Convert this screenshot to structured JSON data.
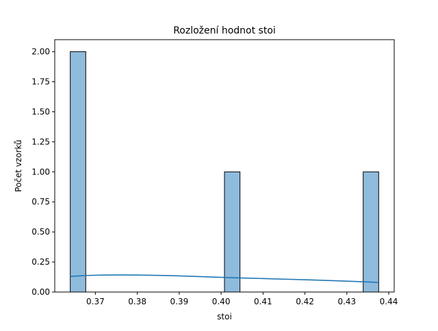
{
  "chart_data": {
    "type": "bar",
    "title": "Rozložení hodnot stoi",
    "xlabel": "stoi",
    "ylabel": "Počet vzorků",
    "xlim": [
      0.3603,
      0.4413
    ],
    "ylim": [
      0,
      2.1
    ],
    "grid": false,
    "legend": "none",
    "x_ticks": [
      0.37,
      0.38,
      0.39,
      0.4,
      0.41,
      0.42,
      0.43,
      0.44
    ],
    "x_tick_labels": [
      "0.37",
      "0.38",
      "0.39",
      "0.40",
      "0.41",
      "0.42",
      "0.43",
      "0.44"
    ],
    "y_ticks": [
      0,
      0.25,
      0.5,
      0.75,
      1.0,
      1.25,
      1.5,
      1.75,
      2.0
    ],
    "y_tick_labels": [
      "0.00",
      "0.25",
      "0.50",
      "0.75",
      "1.00",
      "1.25",
      "1.50",
      "1.75",
      "2.00"
    ],
    "bins": [
      {
        "x0": 0.364,
        "x1": 0.3677,
        "count": 2
      },
      {
        "x0": 0.4008,
        "x1": 0.4045,
        "count": 1
      },
      {
        "x0": 0.4339,
        "x1": 0.4376,
        "count": 1
      }
    ],
    "kde": {
      "x": [
        0.364,
        0.368,
        0.372,
        0.376,
        0.38,
        0.384,
        0.388,
        0.392,
        0.396,
        0.4,
        0.404,
        0.408,
        0.412,
        0.416,
        0.42,
        0.424,
        0.428,
        0.432,
        0.436,
        0.4376
      ],
      "y": [
        0.13,
        0.138,
        0.141,
        0.142,
        0.141,
        0.139,
        0.136,
        0.132,
        0.127,
        0.122,
        0.118,
        0.114,
        0.11,
        0.106,
        0.102,
        0.098,
        0.093,
        0.088,
        0.082,
        0.079
      ]
    },
    "colors": {
      "bar_fill": "#8fbbdd",
      "bar_edge": "#000000",
      "kde_line": "#1f77b4"
    }
  }
}
